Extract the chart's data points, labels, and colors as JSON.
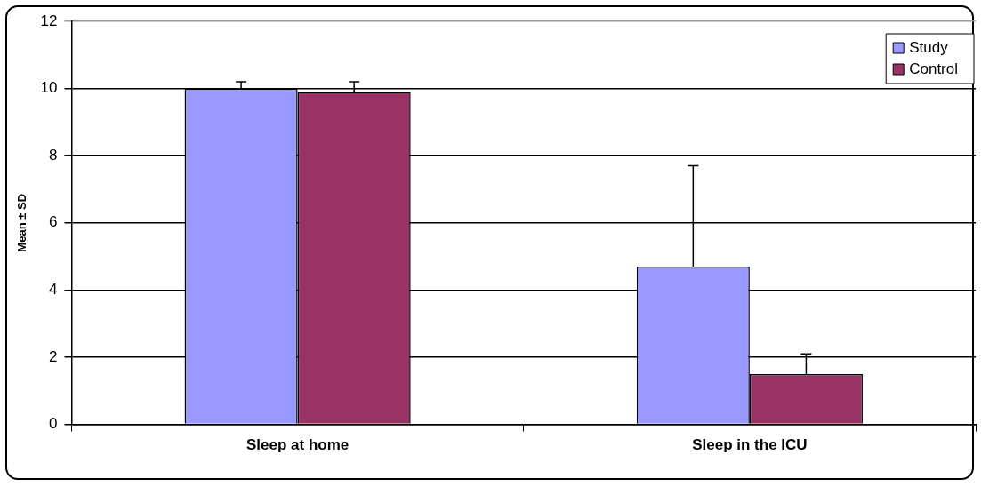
{
  "chart_data": {
    "type": "bar",
    "ylabel": "Mean ± SD",
    "categories": [
      "Sleep at home",
      "Sleep in the ICU"
    ],
    "series": [
      {
        "name": "Study",
        "color": "#9999ff",
        "values": [
          10,
          4.7
        ],
        "errors": [
          [
            10,
            10.2
          ],
          [
            4.7,
            7.7
          ]
        ]
      },
      {
        "name": "Control",
        "color": "#993366",
        "values": [
          9.9,
          1.5
        ],
        "errors": [
          [
            9.9,
            10.2
          ],
          [
            1.5,
            2.1
          ]
        ]
      }
    ],
    "ylim": [
      0,
      12
    ],
    "yticks": [
      0,
      2,
      4,
      6,
      8,
      10,
      12
    ],
    "grid": "y",
    "legend": "top right"
  }
}
